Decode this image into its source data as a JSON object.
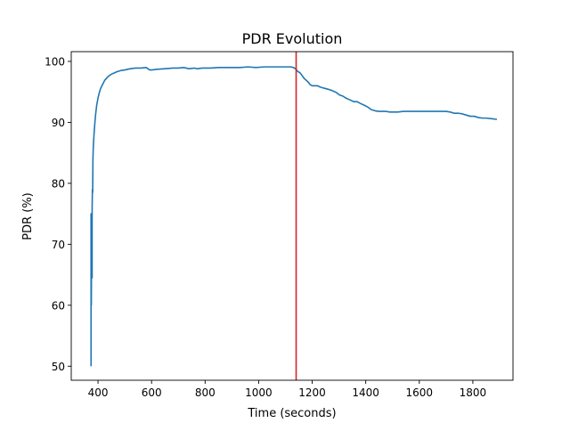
{
  "chart_data": {
    "type": "line",
    "title": "PDR Evolution",
    "xlabel": "Time (seconds)",
    "ylabel": "PDR (%)",
    "xlim": [
      300,
      1950
    ],
    "ylim": [
      47.7,
      101.6
    ],
    "xticks": [
      400,
      600,
      800,
      1000,
      1200,
      1400,
      1600,
      1800
    ],
    "xtick_labels": [
      "400",
      "600",
      "800",
      "1000",
      "1200",
      "1400",
      "1600",
      "1800"
    ],
    "yticks": [
      50,
      60,
      70,
      80,
      90,
      100
    ],
    "ytick_labels": [
      "50",
      "60",
      "70",
      "80",
      "90",
      "100"
    ],
    "grid": false,
    "legend": "none",
    "line_color": "#1f77b4",
    "vline_color": "#d62728",
    "vline_x": 1140,
    "series": [
      {
        "x": [
          374,
          374,
          375,
          376,
          376,
          377,
          378,
          378,
          379,
          380,
          381,
          382,
          383,
          385,
          388,
          391,
          395,
          400,
          405,
          410,
          418,
          425,
          433,
          440,
          450,
          460,
          470,
          485,
          500,
          520,
          540,
          560,
          580,
          593,
          600,
          620,
          650,
          680,
          700,
          720,
          740,
          760,
          770,
          790,
          820,
          850,
          880,
          900,
          930,
          960,
          990,
          1020,
          1050,
          1080,
          1100,
          1120,
          1130,
          1140,
          1145,
          1155,
          1162,
          1170,
          1178,
          1185,
          1192,
          1200,
          1210,
          1220,
          1230,
          1245,
          1262,
          1275,
          1290,
          1302,
          1315,
          1325,
          1340,
          1355,
          1368,
          1380,
          1395,
          1408,
          1420,
          1435,
          1448,
          1462,
          1475,
          1490,
          1505,
          1520,
          1540,
          1560,
          1580,
          1600,
          1620,
          1640,
          1660,
          1680,
          1700,
          1715,
          1730,
          1745,
          1760,
          1775,
          1790,
          1805,
          1820,
          1835,
          1850,
          1870,
          1890
        ],
        "y": [
          50.0,
          75.0,
          60.0,
          72.0,
          75.0,
          69.0,
          64.5,
          76.0,
          79.0,
          78.5,
          84.0,
          85.5,
          86.5,
          88.0,
          89.8,
          91.3,
          92.8,
          94.0,
          94.9,
          95.6,
          96.3,
          96.9,
          97.3,
          97.6,
          97.9,
          98.1,
          98.3,
          98.5,
          98.6,
          98.8,
          98.9,
          98.9,
          99.0,
          98.6,
          98.6,
          98.7,
          98.8,
          98.9,
          98.9,
          99.0,
          98.8,
          98.9,
          98.8,
          98.9,
          98.9,
          99.0,
          99.0,
          99.0,
          99.0,
          99.1,
          99.0,
          99.1,
          99.1,
          99.1,
          99.1,
          99.1,
          99.0,
          98.7,
          98.4,
          98.1,
          97.7,
          97.2,
          96.9,
          96.6,
          96.2,
          96.0,
          96.0,
          96.0,
          95.8,
          95.6,
          95.4,
          95.2,
          94.9,
          94.5,
          94.3,
          94.0,
          93.7,
          93.4,
          93.4,
          93.1,
          92.8,
          92.5,
          92.1,
          91.9,
          91.8,
          91.8,
          91.8,
          91.7,
          91.7,
          91.7,
          91.8,
          91.8,
          91.8,
          91.8,
          91.8,
          91.8,
          91.8,
          91.8,
          91.8,
          91.7,
          91.5,
          91.5,
          91.4,
          91.2,
          91.0,
          91.0,
          90.8,
          90.7,
          90.7,
          90.6,
          90.5
        ]
      }
    ]
  }
}
